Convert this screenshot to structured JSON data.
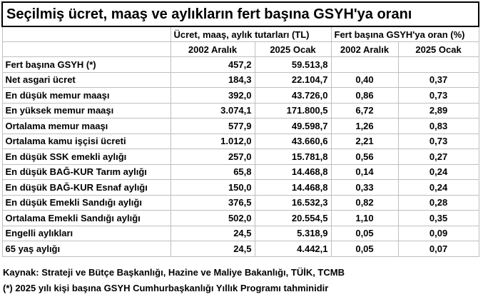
{
  "table": {
    "title": "Seçilmiş ücret, maaş ve aylıkların fert başına GSYH'ya oranı",
    "group_headers": [
      "Ücret, maaş, aylık tutarları (TL)",
      "Fert başına GSYH'ya oran (%)"
    ],
    "sub_headers": [
      "2002 Aralık",
      "2025 Ocak",
      "2002 Aralık",
      "2025 Ocak"
    ],
    "rows": [
      [
        "Fert başına GSYH (*)",
        "457,2",
        "59.513,8"
      ],
      [
        "Net asgari ücret",
        "184,3",
        "22.104,7",
        "0,40",
        "0,37"
      ],
      [
        "En düşük memur maaşı",
        "392,0",
        "43.726,0",
        "0,86",
        "0,73"
      ],
      [
        "En yüksek memur maaşı",
        "3.074,1",
        "171.800,5",
        "6,72",
        "2,89"
      ],
      [
        "Ortalama memur maaşı",
        "577,9",
        "49.598,7",
        "1,26",
        "0,83"
      ],
      [
        "Ortalama kamu işçisi ücreti",
        "1.012,0",
        "43.660,6",
        "2,21",
        "0,73"
      ],
      [
        "En düşük SSK emekli aylığı",
        "257,0",
        "15.781,8",
        "0,56",
        "0,27"
      ],
      [
        "En düşük BAĞ-KUR Tarım aylığı",
        "65,8",
        "14.468,8",
        "0,14",
        "0,24"
      ],
      [
        "En düşük BAĞ-KUR Esnaf aylığı",
        "150,0",
        "14.468,8",
        "0,33",
        "0,24"
      ],
      [
        "En düşük Emekli Sandığı aylığı",
        "376,5",
        "16.532,3",
        "0,82",
        "0,28"
      ],
      [
        "Ortalama Emekli Sandığı aylığı",
        "502,0",
        "20.554,5",
        "1,10",
        "0,35"
      ],
      [
        "Engelli aylıkları",
        "24,5",
        "5.318,9",
        "0,05",
        "0,09"
      ],
      [
        "65 yaş aylığı",
        "24,5",
        "4.442,1",
        "0,05",
        "0,07"
      ]
    ],
    "footnotes": [
      "Kaynak: Strateji ve Bütçe Başkanlığı, Hazine ve Maliye Bakanlığı, TÜİK, TCMB",
      "(*) 2025 yılı kişi başına GSYH Cumhurbaşkanlığı Yıllık Programı tahminidir"
    ]
  }
}
